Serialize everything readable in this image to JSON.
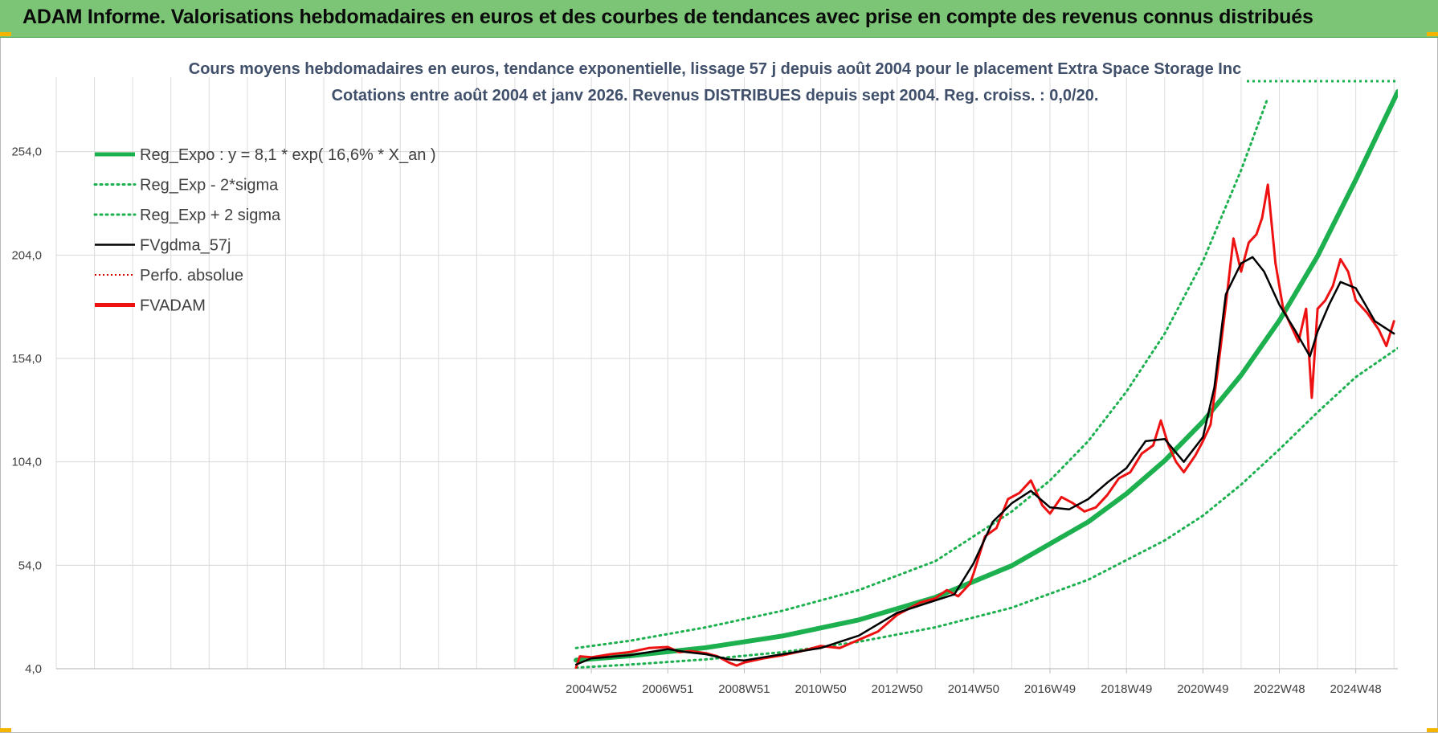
{
  "header": {
    "title": "ADAM Informe. Valorisations hebdomadaires en euros et des courbes de tendances avec prise en compte des revenus connus distribués"
  },
  "colors": {
    "header_bg": "#7cc576",
    "reg_expo": "#1db04f",
    "reg_band": "#1db04f",
    "fvgdma": "#000000",
    "perfo": "#e00000",
    "fvadam": "#ee1111"
  },
  "chart_data": {
    "type": "line",
    "title": "Cours moyens hebdomadaires en euros, tendance exponentielle, lissage 57 j depuis août 2004 pour le placement Extra Space Storage Inc",
    "subtitle": "Cotations entre août 2004 et janv 2026.  Revenus DISTRIBUES depuis sept 2004. Reg. croiss. : 0,0/20.",
    "xlabel": "",
    "ylabel": "",
    "ylim": [
      4,
      290
    ],
    "y_ticks": [
      "4,0",
      "54,0",
      "104,0",
      "154,0",
      "204,0",
      "254,0"
    ],
    "y_tick_values": [
      4,
      54,
      104,
      154,
      204,
      254
    ],
    "x_ticks": [
      "2004W52",
      "2006W51",
      "2008W51",
      "2010W50",
      "2012W50",
      "2014W50",
      "2016W49",
      "2018W49",
      "2020W49",
      "2022W48",
      "2024W48"
    ],
    "x_tick_years": [
      2005.0,
      2007.0,
      2009.0,
      2011.0,
      2013.0,
      2015.0,
      2017.0,
      2019.0,
      2021.0,
      2023.0,
      2025.0
    ],
    "xlim": [
      1991.0,
      2026.1
    ],
    "grid": true,
    "legend_position": "top-left",
    "legend": [
      {
        "label": "Reg_Expo : y = 8,1 * exp( 16,6% *  X_an )",
        "style": "solid-thick",
        "color": "#1db04f"
      },
      {
        "label": "Reg_Exp - 2*sigma",
        "style": "dotted",
        "color": "#1db04f"
      },
      {
        "label": "Reg_Exp + 2 sigma",
        "style": "dotted",
        "color": "#1db04f"
      },
      {
        "label": "FVgdma_57j",
        "style": "solid",
        "color": "#000000"
      },
      {
        "label": "Perfo. absolue",
        "style": "dotted-thin",
        "color": "#e00000"
      },
      {
        "label": "FVADAM",
        "style": "solid-thick",
        "color": "#ee1111"
      }
    ],
    "series": [
      {
        "name": "Reg_Expo : y = 8,1 * exp( 16,6% *  X_an )",
        "x": [
          2004.6,
          2006.0,
          2008.0,
          2010.0,
          2012.0,
          2014.0,
          2016.0,
          2018.0,
          2019.0,
          2020.0,
          2021.0,
          2022.0,
          2023.0,
          2024.0,
          2025.0,
          2026.1
        ],
        "values": [
          8.1,
          10.2,
          14.2,
          19.8,
          27.6,
          38.5,
          53.8,
          75.0,
          88.6,
          104.6,
          123.5,
          145.9,
          172.3,
          203.5,
          240.4,
          283.0
        ]
      },
      {
        "name": "Reg_Exp - 2*sigma",
        "x": [
          2004.6,
          2006.0,
          2008.0,
          2010.0,
          2012.0,
          2014.0,
          2016.0,
          2018.0,
          2020.0,
          2021.0,
          2022.0,
          2023.0,
          2024.0,
          2025.0,
          2026.1
        ],
        "values": [
          4.5,
          6.0,
          8.5,
          12.0,
          17.0,
          24.0,
          33.5,
          47.0,
          66.0,
          78.0,
          93.0,
          110.0,
          128.0,
          145.0,
          159.0
        ]
      },
      {
        "name": "Reg_Exp + 2 sigma",
        "x": [
          2004.6,
          2006.0,
          2008.0,
          2010.0,
          2012.0,
          2014.0,
          2016.0,
          2017.0,
          2018.0,
          2019.0,
          2020.0,
          2021.0,
          2022.0,
          2022.7
        ],
        "values": [
          14.0,
          17.5,
          24.0,
          32.0,
          42.0,
          56.0,
          80.0,
          95.0,
          114.0,
          138.0,
          166.0,
          201.0,
          245.0,
          280.0
        ]
      },
      {
        "name": "FVgdma_57j",
        "x": [
          2004.6,
          2005.0,
          2006.0,
          2007.0,
          2007.5,
          2008.0,
          2008.6,
          2009.0,
          2010.0,
          2011.0,
          2012.0,
          2013.0,
          2014.0,
          2014.5,
          2015.0,
          2015.5,
          2016.0,
          2016.5,
          2017.0,
          2017.5,
          2018.0,
          2018.5,
          2019.0,
          2019.5,
          2020.0,
          2020.5,
          2021.0,
          2021.3,
          2021.6,
          2022.0,
          2022.3,
          2022.6,
          2023.0,
          2023.4,
          2023.8,
          2024.0,
          2024.3,
          2024.6,
          2025.0,
          2025.5,
          2026.0
        ],
        "values": [
          6.0,
          9.0,
          10.5,
          13.5,
          12.0,
          11.0,
          8.5,
          8.0,
          11.0,
          14.0,
          20.0,
          31.0,
          37.0,
          40.0,
          55.0,
          75.0,
          84.0,
          90.0,
          82.0,
          81.0,
          86.0,
          94.0,
          101.0,
          114.0,
          115.0,
          104.0,
          116.0,
          140.0,
          185.0,
          200.0,
          203.0,
          196.0,
          180.0,
          168.0,
          155.0,
          167.0,
          180.0,
          191.0,
          188.0,
          172.0,
          166.0
        ]
      },
      {
        "name": "FVADAM",
        "x": [
          2004.6,
          2004.7,
          2005.0,
          2005.5,
          2006.0,
          2006.5,
          2007.0,
          2007.3,
          2007.6,
          2008.0,
          2008.3,
          2008.6,
          2008.8,
          2009.0,
          2009.5,
          2010.0,
          2010.5,
          2011.0,
          2011.5,
          2012.0,
          2012.5,
          2013.0,
          2013.3,
          2013.6,
          2014.0,
          2014.3,
          2014.6,
          2014.9,
          2015.0,
          2015.3,
          2015.6,
          2015.9,
          2016.2,
          2016.5,
          2016.8,
          2017.0,
          2017.3,
          2017.6,
          2017.9,
          2018.2,
          2018.5,
          2018.8,
          2019.1,
          2019.4,
          2019.7,
          2019.9,
          2020.1,
          2020.3,
          2020.5,
          2020.8,
          2021.0,
          2021.2,
          2021.4,
          2021.6,
          2021.8,
          2022.0,
          2022.2,
          2022.4,
          2022.55,
          2022.7,
          2022.9,
          2023.1,
          2023.3,
          2023.5,
          2023.7,
          2023.85,
          2024.0,
          2024.2,
          2024.4,
          2024.6,
          2024.8,
          2025.0,
          2025.3,
          2025.6,
          2025.8,
          2026.0
        ],
        "values": [
          4.5,
          10.0,
          9.5,
          11.0,
          12.0,
          14.0,
          14.5,
          12.0,
          12.5,
          11.5,
          10.0,
          7.0,
          5.5,
          7.0,
          9.0,
          10.5,
          12.5,
          15.0,
          14.0,
          18.0,
          22.0,
          30.0,
          33.0,
          36.0,
          38.0,
          42.0,
          39.0,
          45.0,
          50.0,
          68.0,
          72.0,
          86.0,
          89.0,
          95.0,
          83.0,
          79.0,
          87.0,
          84.0,
          80.0,
          82.0,
          88.0,
          96.0,
          99.0,
          108.0,
          112.0,
          124.0,
          112.0,
          104.0,
          99.0,
          107.0,
          114.0,
          122.0,
          150.0,
          180.0,
          212.0,
          196.0,
          210.0,
          214.0,
          222.0,
          238.0,
          200.0,
          178.0,
          170.0,
          162.0,
          178.0,
          135.0,
          178.0,
          182.0,
          189.0,
          202.0,
          196.0,
          182.0,
          176.0,
          168.0,
          160.0,
          172.0
        ]
      }
    ]
  }
}
